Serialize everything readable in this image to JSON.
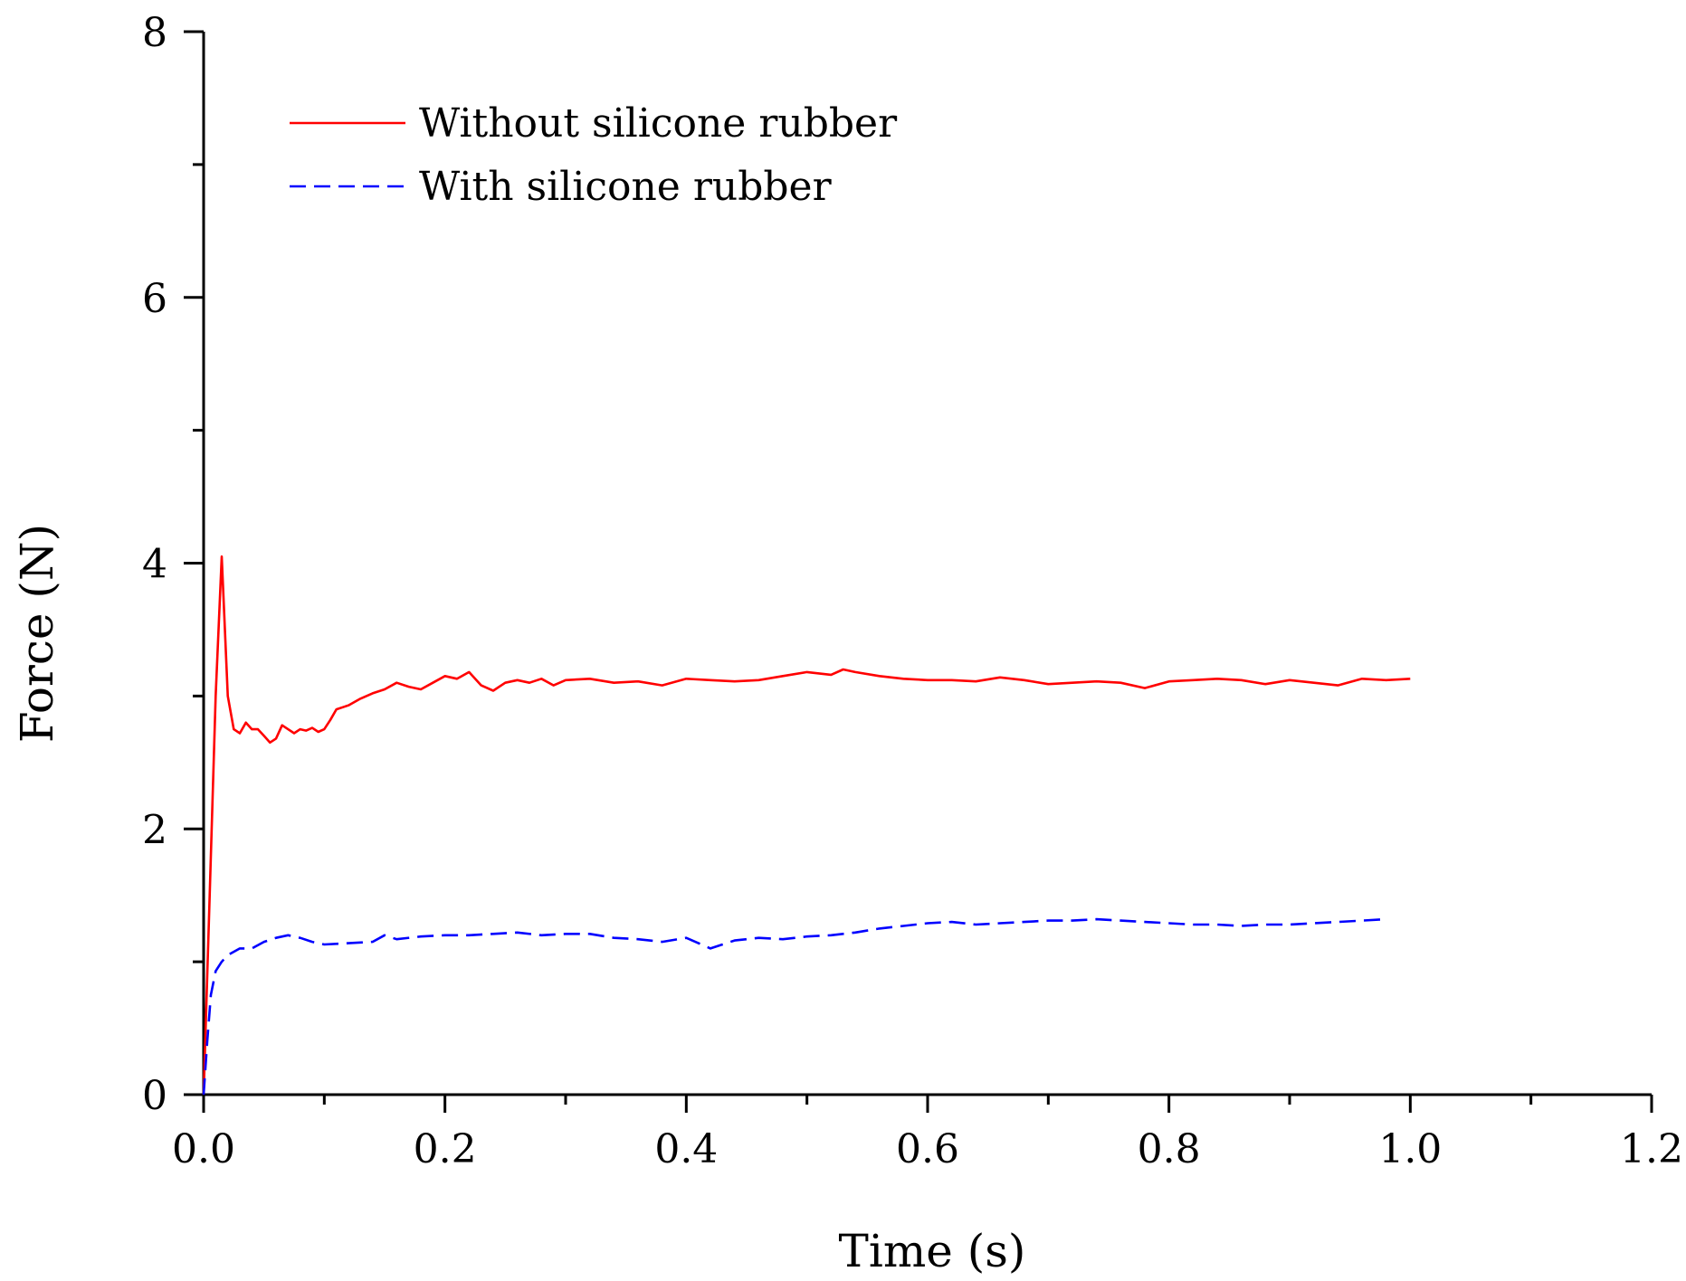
{
  "chart_data": {
    "type": "line",
    "title": "",
    "xlabel": "Time (s)",
    "ylabel": "Force (N)",
    "xlim": [
      0,
      1.2
    ],
    "ylim": [
      0,
      8
    ],
    "x_major_ticks": [
      0.0,
      0.2,
      0.4,
      0.6,
      0.8,
      1.0,
      1.2
    ],
    "x_tick_labels": [
      "0.0",
      "0.2",
      "0.4",
      "0.6",
      "0.8",
      "1.0",
      "1.2"
    ],
    "x_minor_ticks": [
      0.1,
      0.3,
      0.5,
      0.7,
      0.9,
      1.1
    ],
    "y_major_ticks": [
      0,
      2,
      4,
      6,
      8
    ],
    "y_tick_labels": [
      "0",
      "2",
      "4",
      "6",
      "8"
    ],
    "y_minor_ticks": [
      1,
      3,
      5,
      7
    ],
    "grid": false,
    "legend_position": "top-left",
    "series": [
      {
        "name": "Without silicone rubber",
        "color": "#ff0000",
        "dash": "solid",
        "x": [
          0,
          0.005,
          0.01,
          0.015,
          0.02,
          0.025,
          0.03,
          0.035,
          0.04,
          0.045,
          0.05,
          0.055,
          0.06,
          0.065,
          0.07,
          0.075,
          0.08,
          0.085,
          0.09,
          0.095,
          0.1,
          0.105,
          0.11,
          0.12,
          0.13,
          0.14,
          0.15,
          0.16,
          0.17,
          0.18,
          0.19,
          0.2,
          0.21,
          0.22,
          0.23,
          0.24,
          0.25,
          0.26,
          0.27,
          0.28,
          0.29,
          0.3,
          0.32,
          0.34,
          0.36,
          0.38,
          0.4,
          0.42,
          0.44,
          0.46,
          0.48,
          0.5,
          0.52,
          0.53,
          0.54,
          0.56,
          0.58,
          0.6,
          0.62,
          0.64,
          0.66,
          0.68,
          0.7,
          0.72,
          0.74,
          0.76,
          0.78,
          0.8,
          0.82,
          0.84,
          0.86,
          0.88,
          0.9,
          0.92,
          0.94,
          0.96,
          0.98,
          1.0
        ],
        "y": [
          0,
          1.5,
          3.0,
          4.05,
          3.0,
          2.75,
          2.72,
          2.8,
          2.75,
          2.75,
          2.7,
          2.65,
          2.68,
          2.78,
          2.75,
          2.72,
          2.75,
          2.74,
          2.76,
          2.73,
          2.75,
          2.82,
          2.9,
          2.93,
          2.98,
          3.02,
          3.05,
          3.1,
          3.07,
          3.05,
          3.1,
          3.15,
          3.13,
          3.18,
          3.08,
          3.04,
          3.1,
          3.12,
          3.1,
          3.13,
          3.08,
          3.12,
          3.13,
          3.1,
          3.11,
          3.08,
          3.13,
          3.12,
          3.11,
          3.12,
          3.15,
          3.18,
          3.16,
          3.2,
          3.18,
          3.15,
          3.13,
          3.12,
          3.12,
          3.11,
          3.14,
          3.12,
          3.09,
          3.1,
          3.11,
          3.1,
          3.06,
          3.11,
          3.12,
          3.13,
          3.12,
          3.09,
          3.12,
          3.1,
          3.08,
          3.13,
          3.12,
          3.13
        ]
      },
      {
        "name": "With silicone rubber",
        "color": "#0000ff",
        "dash": "dashed",
        "x": [
          0,
          0.003,
          0.006,
          0.01,
          0.015,
          0.02,
          0.03,
          0.04,
          0.05,
          0.06,
          0.07,
          0.08,
          0.09,
          0.1,
          0.12,
          0.14,
          0.15,
          0.16,
          0.18,
          0.2,
          0.22,
          0.24,
          0.26,
          0.28,
          0.3,
          0.32,
          0.34,
          0.36,
          0.38,
          0.4,
          0.42,
          0.44,
          0.46,
          0.48,
          0.5,
          0.52,
          0.54,
          0.56,
          0.58,
          0.6,
          0.62,
          0.64,
          0.66,
          0.68,
          0.7,
          0.72,
          0.74,
          0.76,
          0.78,
          0.8,
          0.82,
          0.84,
          0.86,
          0.88,
          0.9,
          0.92,
          0.94,
          0.96,
          0.98
        ],
        "y": [
          0,
          0.4,
          0.75,
          0.93,
          1.0,
          1.05,
          1.1,
          1.1,
          1.15,
          1.18,
          1.2,
          1.18,
          1.15,
          1.13,
          1.14,
          1.15,
          1.2,
          1.17,
          1.19,
          1.2,
          1.2,
          1.21,
          1.22,
          1.2,
          1.21,
          1.21,
          1.18,
          1.17,
          1.15,
          1.18,
          1.1,
          1.16,
          1.18,
          1.17,
          1.19,
          1.2,
          1.22,
          1.25,
          1.27,
          1.29,
          1.3,
          1.28,
          1.29,
          1.3,
          1.31,
          1.31,
          1.32,
          1.31,
          1.3,
          1.29,
          1.28,
          1.28,
          1.27,
          1.28,
          1.28,
          1.29,
          1.3,
          1.31,
          1.32
        ]
      }
    ]
  }
}
